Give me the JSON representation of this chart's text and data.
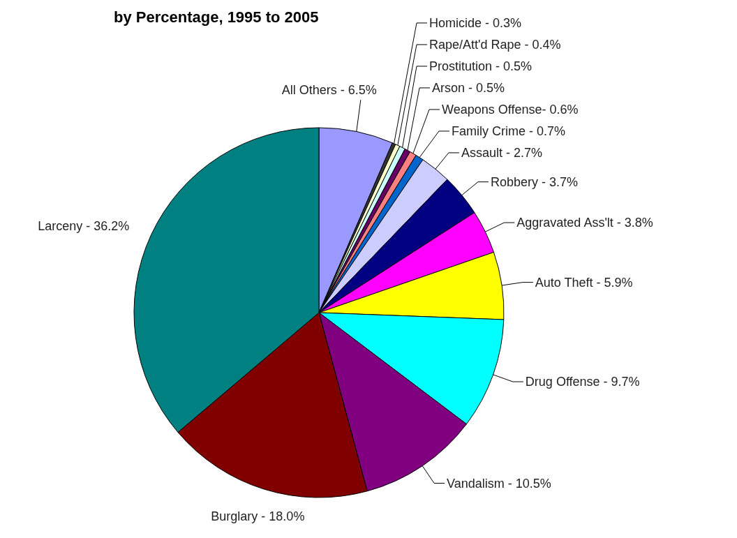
{
  "chart_data": {
    "type": "pie",
    "title": "by Percentage, 1995 to 2005",
    "categories": [
      "All Others - 6.5%",
      "Homicide - 0.3%",
      "Rape/Att'd Rape - 0.4%",
      "Prostitution - 0.5%",
      "Arson - 0.5%",
      "Weapons Offense- 0.6%",
      "Family Crime - 0.7%",
      "Assault - 2.7%",
      "Robbery - 3.7%",
      "Aggravated Ass'lt - 3.8%",
      "Auto Theft - 5.9%",
      "Drug Offense - 9.7%",
      "Vandalism - 10.5%",
      "Burglary - 18.0%",
      "Larceny - 36.2%"
    ],
    "values": [
      6.5,
      0.3,
      0.4,
      0.5,
      0.5,
      0.6,
      0.7,
      2.7,
      3.7,
      3.8,
      5.9,
      9.7,
      10.5,
      18.0,
      36.2
    ],
    "colors": [
      "#9999ff",
      "#333333",
      "#ffffcc",
      "#ccffff",
      "#660066",
      "#ff8080",
      "#0066cc",
      "#ccccff",
      "#000080",
      "#ff00ff",
      "#ffff00",
      "#00ffff",
      "#800080",
      "#800000",
      "#008080"
    ]
  }
}
